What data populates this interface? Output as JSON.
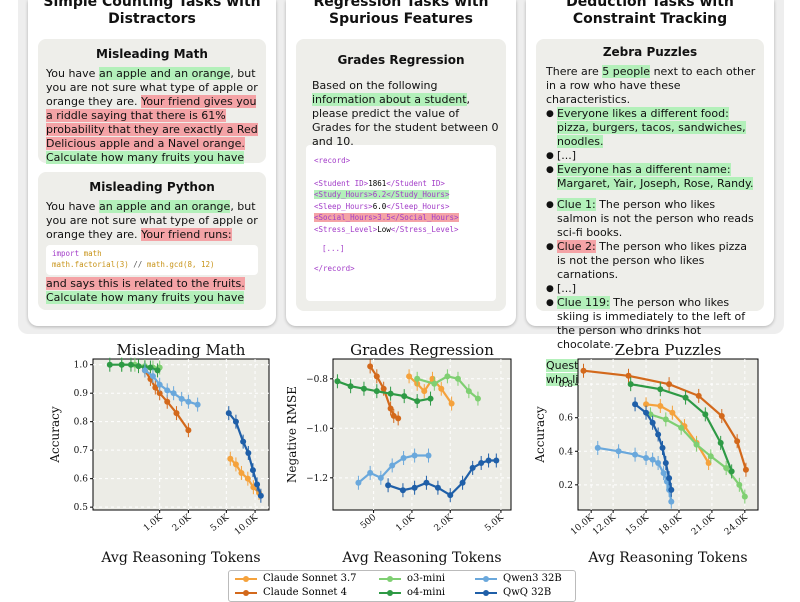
{
  "panels": [
    {
      "title_line1": "Simple Counting Tasks with",
      "title_line2": "Distractors"
    },
    {
      "title_line1": "Regression Tasks with",
      "title_line2": "Spurious Features"
    },
    {
      "title_line1": "Deduction Tasks with",
      "title_line2": "Constraint Tracking"
    }
  ],
  "misleading_math": {
    "title": "Misleading Math",
    "t1": "You have ",
    "t2": "an apple and an orange",
    "t3": ", but you are not sure what type of apple or orange they are. ",
    "t4": "Your friend gives you a riddle saying that there is 61% probability that they are exactly a Red Delicious apple and a Navel orange.",
    "t5": " ",
    "t6": "Calculate how many fruits you have"
  },
  "misleading_python": {
    "title": "Misleading Python",
    "t1": "You have ",
    "t2": "an apple and an orange",
    "t3": ", but you are not sure what type of apple or orange they are. ",
    "t4": "Your friend runs:",
    "code_import": "import",
    "code_module": " math",
    "code_line2a": "math.factorial(3)",
    "code_line2b": " // ",
    "code_line2c": "math.gcd(8, 12)",
    "t5": "and says this is related to the fruits.",
    "t6": "Calculate how many fruits you have"
  },
  "grades_regression": {
    "title": "Grades Regression",
    "t1": "Based on the following ",
    "t2": "information about a student",
    "t3": ", please predict the value of Grades for the student between 0 and 10.",
    "rec_open": "<record>",
    "id_open": "<Student ID>",
    "id_val": "1861",
    "id_close": "</Student ID>",
    "study_line": "<Study_Hours>6.2</Study_Hours>",
    "sleep_open": "<Sleep_Hours>",
    "sleep_val": "6.0",
    "sleep_close": "</Sleep_Hours>",
    "social_line": "<Social_Hours>3.5</Social_Hours>",
    "stress_open": "<Stress_Level>",
    "stress_val": "Low",
    "stress_close": "</Stress_Level>",
    "ellipsis": "[...]",
    "rec_close": "</record>"
  },
  "zebra": {
    "title": "Zebra Puzzles",
    "t1": "There are ",
    "t2": "5 people",
    "t3": " next to each other in a row who have these characteristics.",
    "b1": "Everyone likes a different food: pizza, burgers, tacos, sandwiches, noodles.",
    "b2": "[...]",
    "b3": "Everyone has a different name: Margaret, Yair, Joseph, Rose, Randy.",
    "c1_label": "Clue 1:",
    "c1_text": " The person who likes salmon is not the person who reads sci-fi books.",
    "c2_label": "Clue 2:",
    "c2_text": " The person who likes pizza is not the person who likes carnations.",
    "c3": "[...]",
    "c119_label": "Clue 119:",
    "c119_text": " The person who likes skiing is immediately to the left of the person who drinks hot chocolate.",
    "question": "Question: What position is the person who likes salmon at?"
  },
  "colors": {
    "claude_sonnet_37": "#f5a23c",
    "claude_sonnet_4": "#d3691c",
    "o3_mini": "#7fcf72",
    "o4_mini": "#2e9a45",
    "qwen3_32b": "#6aa8dc",
    "qwq_32b": "#1f5fa8"
  },
  "legend": [
    {
      "label": "Claude Sonnet 3.7",
      "color": "#f5a23c"
    },
    {
      "label": "Claude Sonnet 4",
      "color": "#d3691c"
    },
    {
      "label": "o3-mini",
      "color": "#7fcf72"
    },
    {
      "label": "o4-mini",
      "color": "#2e9a45"
    },
    {
      "label": "Qwen3 32B",
      "color": "#6aa8dc"
    },
    {
      "label": "QwQ 32B",
      "color": "#1f5fa8"
    }
  ],
  "chart_data": [
    {
      "type": "line",
      "title": "Misleading Math",
      "xlabel": "Avg Reasoning Tokens",
      "ylabel": "Accuracy",
      "x_scale": "log",
      "xlim": [
        200,
        14000
      ],
      "ylim": [
        0.49,
        1.02
      ],
      "xticks": [
        1000,
        2000,
        5000,
        10000
      ],
      "xtick_labels": [
        "1.0K",
        "2.0K",
        "5.0K",
        "10.0K"
      ],
      "yticks": [
        0.5,
        0.6,
        0.7,
        0.8,
        0.9,
        1.0
      ],
      "ytick_labels": [
        "0.5",
        "0.6",
        "0.7",
        "0.8",
        "0.9",
        "1.0"
      ],
      "grid": true,
      "series": [
        {
          "name": "Claude Sonnet 3.7",
          "color": "#f5a23c",
          "x": [
            5500,
            6300,
            7200,
            8400,
            9600,
            11000
          ],
          "y": [
            0.67,
            0.65,
            0.62,
            0.6,
            0.57,
            0.55
          ]
        },
        {
          "name": "Claude Sonnet 4",
          "color": "#d3691c",
          "x": [
            700,
            800,
            900,
            1000,
            1200,
            1500,
            2000
          ],
          "y": [
            0.98,
            0.95,
            0.92,
            0.9,
            0.87,
            0.83,
            0.77
          ]
        },
        {
          "name": "o3-mini",
          "color": "#7fcf72",
          "x": [
            400,
            550,
            700,
            850,
            1000
          ],
          "y": [
            1.0,
            1.0,
            0.995,
            0.99,
            0.99
          ]
        },
        {
          "name": "o4-mini",
          "color": "#2e9a45",
          "x": [
            300,
            400,
            500,
            600,
            700,
            800,
            950
          ],
          "y": [
            1.0,
            1.0,
            1.0,
            0.995,
            0.99,
            0.99,
            0.98
          ]
        },
        {
          "name": "Qwen3 32B",
          "color": "#6aa8dc",
          "x": [
            700,
            850,
            1000,
            1200,
            1400,
            1700,
            2000,
            2500
          ],
          "y": [
            0.98,
            0.96,
            0.93,
            0.91,
            0.9,
            0.88,
            0.87,
            0.86
          ]
        },
        {
          "name": "QwQ 32B",
          "color": "#1f5fa8",
          "x": [
            5300,
            6300,
            7500,
            8500,
            9500,
            10500,
            11500
          ],
          "y": [
            0.83,
            0.8,
            0.73,
            0.69,
            0.63,
            0.58,
            0.54
          ]
        }
      ]
    },
    {
      "type": "line",
      "title": "Grades Regression",
      "xlabel": "Avg Reasoning Tokens",
      "ylabel": "Negative RMSE",
      "x_scale": "log",
      "xlim": [
        240,
        6000
      ],
      "ylim": [
        -1.33,
        -0.72
      ],
      "xticks": [
        500,
        1000,
        2000,
        5000
      ],
      "xtick_labels": [
        "500",
        "1.0K",
        "2.0K",
        "5.0K"
      ],
      "yticks": [
        -1.2,
        -1.0,
        -0.8
      ],
      "ytick_labels": [
        "−1.2",
        "−1.0",
        "−0.8"
      ],
      "grid": true,
      "series": [
        {
          "name": "Claude Sonnet 3.7",
          "color": "#f5a23c",
          "x": [
            950,
            1100,
            1250,
            1450,
            1700,
            2050
          ],
          "y": [
            -0.79,
            -0.82,
            -0.85,
            -0.8,
            -0.84,
            -0.9
          ]
        },
        {
          "name": "Claude Sonnet 4",
          "color": "#d3691c",
          "x": [
            470,
            530,
            600,
            680,
            720,
            780
          ],
          "y": [
            -0.75,
            -0.79,
            -0.84,
            -0.92,
            -0.95,
            -0.96
          ]
        },
        {
          "name": "o3-mini",
          "color": "#7fcf72",
          "x": [
            1100,
            1500,
            1900,
            2300,
            2800,
            3300
          ],
          "y": [
            -0.8,
            -0.82,
            -0.79,
            -0.8,
            -0.85,
            -0.88
          ]
        },
        {
          "name": "o4-mini",
          "color": "#2e9a45",
          "x": [
            260,
            330,
            420,
            530,
            680,
            870,
            1100,
            1400
          ],
          "y": [
            -0.81,
            -0.83,
            -0.84,
            -0.85,
            -0.86,
            -0.87,
            -0.89,
            -0.88
          ]
        },
        {
          "name": "Qwen3 32B",
          "color": "#6aa8dc",
          "x": [
            380,
            470,
            570,
            700,
            860,
            1050,
            1350
          ],
          "y": [
            -1.22,
            -1.18,
            -1.2,
            -1.15,
            -1.12,
            -1.11,
            -1.11
          ]
        },
        {
          "name": "QwQ 32B",
          "color": "#1f5fa8",
          "x": [
            650,
            850,
            1050,
            1300,
            1600,
            2000,
            2500,
            3000,
            3500,
            4000,
            4600
          ],
          "y": [
            -1.23,
            -1.25,
            -1.24,
            -1.22,
            -1.24,
            -1.27,
            -1.22,
            -1.16,
            -1.14,
            -1.13,
            -1.13
          ]
        }
      ]
    },
    {
      "type": "line",
      "title": "Zebra Puzzles",
      "xlabel": "Avg Reasoning Tokens",
      "ylabel": "Accuracy",
      "x_scale": "linear",
      "xlim": [
        8800,
        25200
      ],
      "ylim": [
        0.05,
        0.95
      ],
      "xticks": [
        10000,
        12000,
        15000,
        18000,
        21000,
        24000
      ],
      "xtick_labels": [
        "10.0K",
        "12.0K",
        "15.0K",
        "18.0K",
        "21.0K",
        "24.0K"
      ],
      "yticks": [
        0.2,
        0.4,
        0.6,
        0.8
      ],
      "ytick_labels": [
        "0.2",
        "0.4",
        "0.6",
        "0.8"
      ],
      "grid": true,
      "series": [
        {
          "name": "Claude Sonnet 3.7",
          "color": "#f5a23c",
          "x": [
            15000,
            16300,
            17400,
            18500,
            19600,
            20700
          ],
          "y": [
            0.68,
            0.67,
            0.63,
            0.55,
            0.45,
            0.33
          ]
        },
        {
          "name": "Claude Sonnet 4",
          "color": "#d3691c",
          "x": [
            9300,
            13400,
            17100,
            19800,
            21900,
            23300,
            24100
          ],
          "y": [
            0.88,
            0.85,
            0.8,
            0.73,
            0.61,
            0.46,
            0.29
          ]
        },
        {
          "name": "o3-mini",
          "color": "#7fcf72",
          "x": [
            15400,
            16800,
            18200,
            19600,
            20900,
            22300,
            23500,
            24000
          ],
          "y": [
            0.62,
            0.59,
            0.54,
            0.44,
            0.37,
            0.3,
            0.2,
            0.13
          ]
        },
        {
          "name": "o4-mini",
          "color": "#2e9a45",
          "x": [
            13600,
            16300,
            18600,
            20400,
            21800,
            22800
          ],
          "y": [
            0.8,
            0.77,
            0.72,
            0.62,
            0.45,
            0.28
          ]
        },
        {
          "name": "Qwen3 32B",
          "color": "#6aa8dc",
          "x": [
            10600,
            12500,
            14000,
            15000,
            15600,
            16100,
            16600,
            16900,
            17100,
            17300
          ],
          "y": [
            0.42,
            0.4,
            0.38,
            0.36,
            0.35,
            0.33,
            0.27,
            0.22,
            0.17,
            0.1
          ]
        },
        {
          "name": "QwQ 32B",
          "color": "#1f5fa8",
          "x": [
            14000,
            15000,
            15600,
            16100,
            16500,
            16800,
            17100,
            17300
          ],
          "y": [
            0.68,
            0.63,
            0.57,
            0.5,
            0.42,
            0.33,
            0.24,
            0.17
          ]
        }
      ]
    }
  ]
}
